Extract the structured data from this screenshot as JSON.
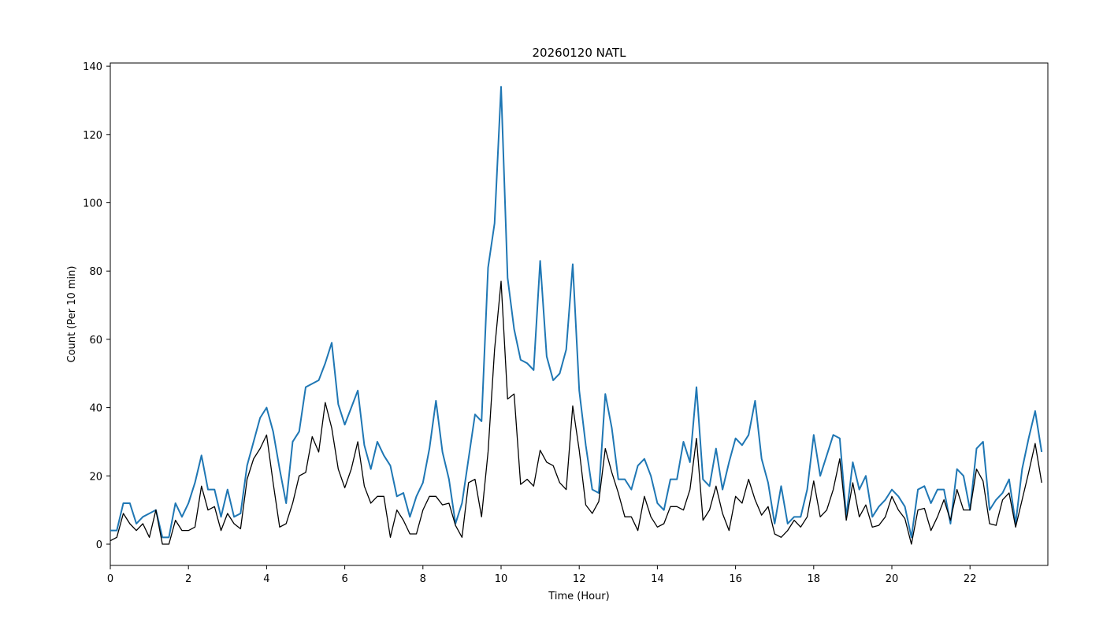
{
  "chart_data": {
    "type": "line",
    "title": "20260120 NATL",
    "xlabel": "Time (Hour)",
    "ylabel": "Count (Per 10 min)",
    "xlim": [
      0,
      24
    ],
    "ylim": [
      -7,
      141
    ],
    "xticks": [
      0,
      2,
      4,
      6,
      8,
      10,
      12,
      14,
      16,
      18,
      20,
      22
    ],
    "yticks": [
      0,
      20,
      40,
      60,
      80,
      100,
      120,
      140
    ],
    "grid": false,
    "legend": "none",
    "x_step_hours": 0.16667,
    "series": [
      {
        "color": "#1f77b4",
        "values": [
          4,
          4,
          12,
          12,
          6,
          8,
          9,
          10,
          2,
          2,
          12,
          8,
          12,
          18,
          26,
          16,
          16,
          8,
          16,
          8,
          9,
          23,
          30,
          37,
          40,
          33,
          22,
          12,
          30,
          33,
          46,
          47,
          48,
          53,
          59,
          41,
          35,
          40,
          45,
          29,
          22,
          30,
          26,
          23,
          14,
          15,
          8,
          14,
          18,
          28,
          42,
          27,
          19,
          6,
          12,
          25,
          38,
          36,
          81,
          94,
          134,
          78,
          63,
          54,
          53,
          51,
          83,
          55,
          48,
          50,
          57,
          82,
          45,
          29,
          16,
          15,
          44,
          34,
          19,
          19,
          16,
          23,
          25,
          20,
          12,
          10,
          19,
          19,
          30,
          24,
          46,
          19,
          17,
          28,
          16,
          24,
          31,
          29,
          32,
          42,
          25,
          18,
          6,
          17,
          6,
          8,
          8,
          16,
          32,
          20,
          26,
          32,
          31,
          8,
          24,
          16,
          20,
          8,
          11,
          13,
          16,
          14,
          11,
          2,
          16,
          17,
          12,
          16,
          16,
          6,
          22,
          20,
          10,
          28,
          30,
          10,
          13,
          15,
          19,
          6,
          22,
          31,
          39,
          27
        ]
      },
      {
        "color": "#000000",
        "values": [
          1,
          2,
          9,
          6,
          4,
          6,
          2,
          10,
          0,
          0,
          7,
          4,
          4,
          5,
          17,
          10,
          11,
          4,
          9,
          6,
          4.5,
          19,
          25,
          28,
          32,
          18,
          5,
          6,
          12,
          20,
          21,
          31.5,
          27,
          41.5,
          34,
          22,
          16.5,
          22,
          30,
          17,
          12,
          14,
          14,
          2,
          10,
          7,
          3,
          3,
          10,
          14,
          14,
          11.5,
          12,
          5.5,
          2,
          18,
          19,
          8,
          27,
          57,
          77,
          42.5,
          44,
          17.5,
          19,
          17,
          27.5,
          24,
          23,
          18,
          16,
          40.5,
          27.5,
          11.5,
          9,
          12.5,
          28,
          21,
          15,
          8,
          8,
          4,
          14,
          8,
          5,
          6,
          11,
          11,
          10,
          16,
          31,
          7,
          10,
          17,
          9,
          4,
          14,
          12,
          19,
          13,
          8.5,
          11,
          3,
          2,
          4,
          7,
          5,
          8,
          18.5,
          8,
          10,
          16,
          25,
          7,
          18,
          8,
          11.5,
          5,
          5.5,
          8,
          14,
          10,
          7.5,
          0,
          10,
          10.5,
          4,
          8,
          13,
          7,
          16,
          10,
          10,
          22,
          18.5,
          6,
          5.5,
          13,
          15,
          5,
          13,
          21,
          29.5,
          18
        ]
      }
    ]
  }
}
